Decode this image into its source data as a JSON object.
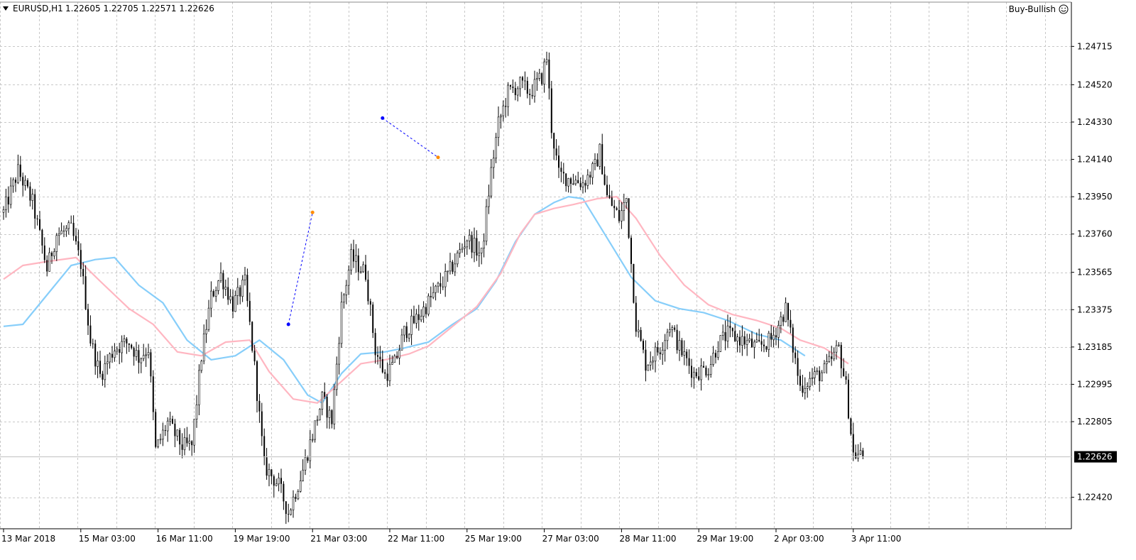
{
  "header": {
    "symbol_label": "EURUSD,H1",
    "ohlc_label": "1.22605 1.22705 1.22571 1.22626",
    "advisor_label": "Buy-Bullish",
    "menu_icon": "triangle-down-icon",
    "advisor_icon": "smiley-icon"
  },
  "colors": {
    "candle": "#000000",
    "ma_fast": "#ffb6c1",
    "ma_slow": "#87cefa",
    "grid": "#c8c8c8",
    "price_tag_bg": "#000000",
    "price_tag_text": "#ffffff",
    "trade_buy": "#0000ff",
    "trade_sell": "#ff8c00"
  },
  "chart_data": {
    "type": "candlestick",
    "symbol": "EURUSD",
    "timeframe": "H1",
    "grid": true,
    "ylim": [
      1.2235,
      1.2485
    ],
    "y_ticks": [
      1.24715,
      1.2452,
      1.2433,
      1.2414,
      1.2395,
      1.2376,
      1.23565,
      1.23375,
      1.23185,
      1.22995,
      1.22805,
      1.2242
    ],
    "y_tick_labels": [
      "1.24715",
      "1.24520",
      "1.24330",
      "1.24140",
      "1.23950",
      "1.23760",
      "1.23565",
      "1.23375",
      "1.23185",
      "1.22995",
      "1.22805",
      "1.22420"
    ],
    "x_tick_labels": [
      "13 Mar 2018",
      "15 Mar 03:00",
      "16 Mar 11:00",
      "19 Mar 19:00",
      "21 Mar 03:00",
      "22 Mar 11:00",
      "25 Mar 19:00",
      "27 Mar 03:00",
      "28 Mar 11:00",
      "29 Mar 19:00",
      "2 Apr 03:00",
      "3 Apr 11:00"
    ],
    "x_tick_bars": [
      0,
      32,
      64,
      96,
      128,
      160,
      192,
      224,
      256,
      288,
      320,
      352
    ],
    "current_price": 1.22626,
    "current_price_label": "1.22626",
    "trend_points": [
      [
        0,
        1.2387
      ],
      [
        6,
        1.2408
      ],
      [
        12,
        1.2392
      ],
      [
        18,
        1.2358
      ],
      [
        22,
        1.2376
      ],
      [
        28,
        1.2378
      ],
      [
        32,
        1.2361
      ],
      [
        36,
        1.2322
      ],
      [
        40,
        1.2304
      ],
      [
        46,
        1.2318
      ],
      [
        52,
        1.2321
      ],
      [
        56,
        1.2313
      ],
      [
        60,
        1.2318
      ],
      [
        63,
        1.2266
      ],
      [
        68,
        1.228
      ],
      [
        74,
        1.2268
      ],
      [
        78,
        1.2268
      ],
      [
        82,
        1.2314
      ],
      [
        86,
        1.2344
      ],
      [
        90,
        1.2355
      ],
      [
        95,
        1.234
      ],
      [
        100,
        1.2351
      ],
      [
        104,
        1.2308
      ],
      [
        108,
        1.2258
      ],
      [
        114,
        1.2248
      ],
      [
        118,
        1.2234
      ],
      [
        124,
        1.2256
      ],
      [
        128,
        1.2274
      ],
      [
        132,
        1.2292
      ],
      [
        136,
        1.2281
      ],
      [
        140,
        1.2339
      ],
      [
        144,
        1.2364
      ],
      [
        150,
        1.2356
      ],
      [
        154,
        1.2317
      ],
      [
        158,
        1.2304
      ],
      [
        162,
        1.231
      ],
      [
        166,
        1.2326
      ],
      [
        172,
        1.2334
      ],
      [
        178,
        1.2345
      ],
      [
        184,
        1.2355
      ],
      [
        192,
        1.2374
      ],
      [
        198,
        1.2365
      ],
      [
        202,
        1.2408
      ],
      [
        205,
        1.2432
      ],
      [
        209,
        1.2448
      ],
      [
        214,
        1.2452
      ],
      [
        218,
        1.2448
      ],
      [
        223,
        1.2456
      ],
      [
        225,
        1.2466
      ],
      [
        227,
        1.243
      ],
      [
        230,
        1.2406
      ],
      [
        235,
        1.2404
      ],
      [
        240,
        1.2402
      ],
      [
        245,
        1.241
      ],
      [
        247,
        1.2418
      ],
      [
        250,
        1.2395
      ],
      [
        255,
        1.2384
      ],
      [
        258,
        1.2394
      ],
      [
        260,
        1.2361
      ],
      [
        262,
        1.233
      ],
      [
        266,
        1.231
      ],
      [
        272,
        1.2318
      ],
      [
        276,
        1.233
      ],
      [
        280,
        1.2318
      ],
      [
        286,
        1.2305
      ],
      [
        292,
        1.2308
      ],
      [
        296,
        1.232
      ],
      [
        300,
        1.2325
      ],
      [
        306,
        1.2322
      ],
      [
        312,
        1.2318
      ],
      [
        318,
        1.2322
      ],
      [
        324,
        1.2338
      ],
      [
        330,
        1.2298
      ],
      [
        334,
        1.2302
      ],
      [
        340,
        1.2306
      ],
      [
        346,
        1.2318
      ],
      [
        349,
        1.2298
      ],
      [
        352,
        1.2264
      ],
      [
        356,
        1.2263
      ]
    ],
    "ma_fast": [
      [
        0,
        1.2353
      ],
      [
        8,
        1.236
      ],
      [
        18,
        1.2362
      ],
      [
        30,
        1.2364
      ],
      [
        40,
        1.2352
      ],
      [
        52,
        1.2338
      ],
      [
        62,
        1.233
      ],
      [
        72,
        1.2316
      ],
      [
        82,
        1.2314
      ],
      [
        92,
        1.2321
      ],
      [
        102,
        1.2322
      ],
      [
        110,
        1.2306
      ],
      [
        120,
        1.2292
      ],
      [
        130,
        1.229
      ],
      [
        140,
        1.2301
      ],
      [
        148,
        1.231
      ],
      [
        158,
        1.2312
      ],
      [
        168,
        1.2315
      ],
      [
        176,
        1.2319
      ],
      [
        186,
        1.2329
      ],
      [
        196,
        1.2339
      ],
      [
        206,
        1.2356
      ],
      [
        214,
        1.2376
      ],
      [
        220,
        1.2386
      ],
      [
        228,
        1.2389
      ],
      [
        236,
        1.2391
      ],
      [
        246,
        1.2394
      ],
      [
        254,
        1.2395
      ],
      [
        262,
        1.2384
      ],
      [
        272,
        1.2365
      ],
      [
        282,
        1.235
      ],
      [
        292,
        1.234
      ],
      [
        302,
        1.2335
      ],
      [
        312,
        1.2332
      ],
      [
        322,
        1.2328
      ],
      [
        330,
        1.2322
      ],
      [
        340,
        1.2318
      ],
      [
        350,
        1.231
      ]
    ],
    "ma_slow": [
      [
        0,
        1.2329
      ],
      [
        8,
        1.233
      ],
      [
        18,
        1.2345
      ],
      [
        28,
        1.236
      ],
      [
        38,
        1.2363
      ],
      [
        46,
        1.2364
      ],
      [
        56,
        1.235
      ],
      [
        66,
        1.2341
      ],
      [
        76,
        1.2322
      ],
      [
        86,
        1.2312
      ],
      [
        96,
        1.2314
      ],
      [
        106,
        1.2322
      ],
      [
        116,
        1.2312
      ],
      [
        126,
        1.2294
      ],
      [
        132,
        1.229
      ],
      [
        140,
        1.2305
      ],
      [
        148,
        1.2315
      ],
      [
        158,
        1.2316
      ],
      [
        166,
        1.2318
      ],
      [
        176,
        1.2321
      ],
      [
        186,
        1.233
      ],
      [
        196,
        1.2338
      ],
      [
        204,
        1.2352
      ],
      [
        212,
        1.2372
      ],
      [
        220,
        1.2386
      ],
      [
        228,
        1.2392
      ],
      [
        234,
        1.2395
      ],
      [
        240,
        1.2394
      ],
      [
        250,
        1.2374
      ],
      [
        260,
        1.2354
      ],
      [
        270,
        1.2342
      ],
      [
        280,
        1.2338
      ],
      [
        290,
        1.2336
      ],
      [
        300,
        1.2332
      ],
      [
        312,
        1.2325
      ],
      [
        322,
        1.2322
      ],
      [
        332,
        1.2314
      ]
    ],
    "trade_lines": [
      {
        "from": [
          157,
          1.2435
        ],
        "to": [
          180,
          1.2415
        ],
        "entry": "buy",
        "exit": "sell"
      },
      {
        "from": [
          118,
          1.233
        ],
        "to": [
          128,
          1.2387
        ],
        "entry": "buy",
        "exit": "sell"
      }
    ],
    "bar_count": 357
  }
}
